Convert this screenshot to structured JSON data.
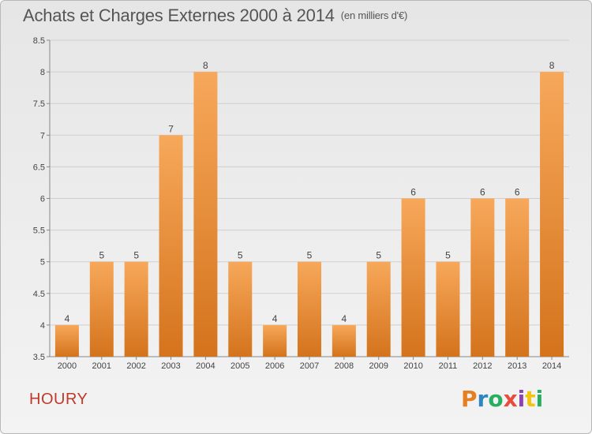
{
  "title": "Achats et Charges Externes 2000 à 2014",
  "unit_label": "(en milliers d'€)",
  "commune": "HOURY",
  "logo": {
    "text": "Proxiti",
    "letters": [
      {
        "ch": "P",
        "color": "#e67e22"
      },
      {
        "ch": "r",
        "color": "#2e86c1"
      },
      {
        "ch": "o",
        "color": "#27ae60"
      },
      {
        "ch": "x",
        "color": "#e74c3c"
      },
      {
        "ch": "i",
        "color": "#8e44ad"
      },
      {
        "ch": "t",
        "color": "#f1c40f"
      },
      {
        "ch": "i",
        "color": "#27ae60"
      }
    ]
  },
  "colors": {
    "bar_top": "#f7a85a",
    "bar_bottom": "#d4731c",
    "commune": "#c0392b"
  },
  "chart_data": {
    "type": "bar",
    "categories": [
      "2000",
      "2001",
      "2002",
      "2003",
      "2004",
      "2005",
      "2006",
      "2007",
      "2008",
      "2009",
      "2010",
      "2011",
      "2012",
      "2013",
      "2014"
    ],
    "values": [
      4,
      5,
      5,
      7,
      8,
      5,
      4,
      5,
      4,
      5,
      6,
      5,
      6,
      6,
      8
    ],
    "data_labels": [
      "4",
      "5",
      "5",
      "7",
      "8",
      "5",
      "4",
      "5",
      "4",
      "5",
      "6",
      "5",
      "6",
      "6",
      "8"
    ],
    "ylim": [
      3.5,
      8.5
    ],
    "yticks": [
      "3.5",
      "4",
      "4.5",
      "5",
      "5.5",
      "6",
      "6.5",
      "7",
      "7.5",
      "8",
      "8.5"
    ],
    "grid": true,
    "legend": "none"
  }
}
